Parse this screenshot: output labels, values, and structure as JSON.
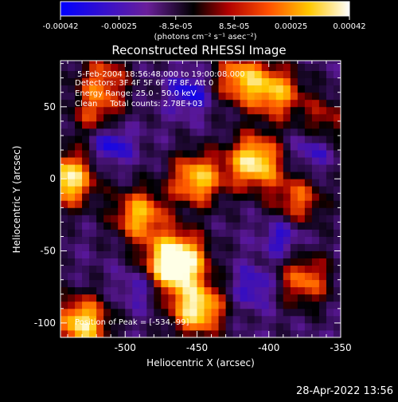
{
  "colorbar": {
    "ticks": [
      "-0.00042",
      "-0.00025",
      "-8.5e-05",
      "8.5e-05",
      "0.00025",
      "0.00042"
    ],
    "units": "(photons cm⁻² s⁻¹ asec⁻²)"
  },
  "header": {
    "title": "Reconstructed RHESSI Image"
  },
  "annotations": {
    "time_range": "5-Feb-2004 18:56:48.000 to 19:00:08.000",
    "detectors": "Detectors: 3F 4F 5F 6F 7F 8F, Att 0",
    "energy_range": "Energy Range: 25.0 - 50.0 keV",
    "clean": "Clean     Total counts: 2.78E+03",
    "peak_position": "Position of Peak = [-534,-99]"
  },
  "footer": {
    "timestamp": "28-Apr-2022 13:56"
  },
  "chart_data": {
    "type": "heatmap",
    "title": "Reconstructed RHESSI Image",
    "xlabel": "Heliocentric X (arcsec)",
    "ylabel": "Heliocentric Y (arcsec)",
    "xlim": [
      -545,
      -350
    ],
    "ylim": [
      -110,
      82
    ],
    "xticks": [
      -500,
      -450,
      -400,
      -350
    ],
    "yticks": [
      50,
      0,
      -50,
      -100
    ],
    "colorbar_range": [
      -0.00042,
      0.00042
    ],
    "colormap": [
      "#0000ff",
      "#5a1890",
      "#000000",
      "#c00000",
      "#ff6400",
      "#ffd800",
      "#ffffff"
    ],
    "hotspots": [
      {
        "x": -540,
        "y": 0,
        "level": 0.95
      },
      {
        "x": -530,
        "y": -100,
        "level": 0.9
      },
      {
        "x": -450,
        "y": -90,
        "level": 0.95
      },
      {
        "x": -470,
        "y": -60,
        "level": 0.75
      },
      {
        "x": -490,
        "y": -25,
        "level": 0.75
      },
      {
        "x": -460,
        "y": -55,
        "level": 0.7
      },
      {
        "x": -450,
        "y": 0,
        "level": 0.8
      },
      {
        "x": -410,
        "y": 12,
        "level": 0.95
      },
      {
        "x": -395,
        "y": 60,
        "level": 0.7
      },
      {
        "x": -420,
        "y": 70,
        "level": 0.7
      },
      {
        "x": -375,
        "y": -70,
        "level": 0.6
      },
      {
        "x": -380,
        "y": -15,
        "level": 0.55
      },
      {
        "x": -515,
        "y": 70,
        "level": 0.5
      },
      {
        "x": -520,
        "y": 45,
        "level": 0.45
      },
      {
        "x": -360,
        "y": 40,
        "level": 0.4
      }
    ],
    "coldspots": [
      {
        "x": -510,
        "y": 25,
        "level": 0.7
      },
      {
        "x": -455,
        "y": 60,
        "level": 0.6
      },
      {
        "x": -390,
        "y": -40,
        "level": 0.55
      },
      {
        "x": -410,
        "y": -75,
        "level": 0.5
      },
      {
        "x": -370,
        "y": 20,
        "level": 0.5
      },
      {
        "x": -490,
        "y": -75,
        "level": 0.45
      }
    ]
  }
}
